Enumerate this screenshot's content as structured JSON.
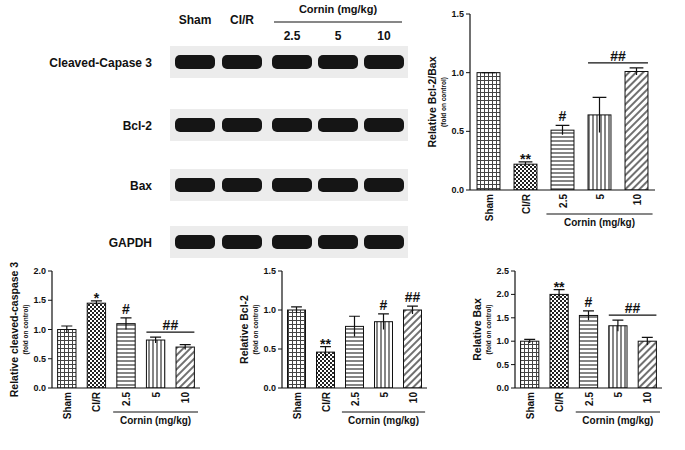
{
  "blot": {
    "lanes": [
      "Sham",
      "CI/R",
      "2.5",
      "5",
      "10"
    ],
    "dose_group": "Cornin (mg/kg)",
    "rows": [
      "Cleaved-Capase 3",
      "Bcl-2",
      "Bax",
      "GAPDH"
    ]
  },
  "chart_data": [
    {
      "type": "bar",
      "ylabel": "Relative Bcl-2/Bax",
      "ylabel_note": "(fold on control)",
      "categories": [
        "Sham",
        "CI/R",
        "2.5",
        "5",
        "10"
      ],
      "values": [
        1.0,
        0.22,
        0.51,
        0.64,
        1.01
      ],
      "errors": [
        0.0,
        0.02,
        0.04,
        0.15,
        0.03
      ],
      "ylim": [
        0,
        1.5
      ],
      "yticks": [
        {
          "value": 0,
          "label": "0.0"
        },
        0.5,
        {
          "value": 1,
          "label": "1.0"
        },
        1.5
      ],
      "x_group": {
        "label": "Cornin (mg/kg)",
        "categories": [
          "2.5",
          "5",
          "10"
        ]
      },
      "annotations": [
        {
          "text": "**",
          "categories": [
            "CI/R"
          ]
        },
        {
          "text": "#",
          "categories": [
            "2.5"
          ]
        },
        {
          "text": "##",
          "categories": [
            "5",
            "10"
          ]
        }
      ]
    },
    {
      "type": "bar",
      "ylabel": "Relative cleaved-caspase 3",
      "ylabel_note": "(fold on control)",
      "categories": [
        "Sham",
        "CI/R",
        "2.5",
        "5",
        "10"
      ],
      "values": [
        1.0,
        1.45,
        1.1,
        0.82,
        0.7
      ],
      "errors": [
        0.06,
        0.04,
        0.1,
        0.05,
        0.04
      ],
      "ylim": [
        0,
        2
      ],
      "yticks": [
        {
          "value": 0,
          "label": "0.0"
        },
        0.5,
        {
          "value": 1,
          "label": "1.0"
        },
        1.5,
        {
          "value": 2,
          "label": "2.0"
        }
      ],
      "x_group": {
        "label": "Cornin (mg/kg)",
        "categories": [
          "2.5",
          "5",
          "10"
        ]
      },
      "annotations": [
        {
          "text": "*",
          "categories": [
            "CI/R"
          ]
        },
        {
          "text": "#",
          "categories": [
            "2.5"
          ]
        },
        {
          "text": "##",
          "categories": [
            "5",
            "10"
          ]
        }
      ]
    },
    {
      "type": "bar",
      "ylabel": "Relative Bcl-2",
      "ylabel_note": "(fold on control)",
      "categories": [
        "Sham",
        "CI/R",
        "2.5",
        "5",
        "10"
      ],
      "values": [
        1.0,
        0.46,
        0.79,
        0.85,
        1.0
      ],
      "errors": [
        0.04,
        0.07,
        0.13,
        0.1,
        0.05
      ],
      "ylim": [
        0,
        1.5
      ],
      "yticks": [
        {
          "value": 0,
          "label": "0.0"
        },
        0.5,
        {
          "value": 1,
          "label": "1.0"
        },
        1.5
      ],
      "x_group": {
        "label": "Cornin (mg/kg)",
        "categories": [
          "2.5",
          "5",
          "10"
        ]
      },
      "annotations": [
        {
          "text": "**",
          "categories": [
            "CI/R"
          ]
        },
        {
          "text": "#",
          "categories": [
            "5"
          ]
        },
        {
          "text": "##",
          "categories": [
            "10"
          ]
        }
      ]
    },
    {
      "type": "bar",
      "ylabel": "Relative Bax",
      "ylabel_note": "(fold on control)",
      "categories": [
        "Sham",
        "CI/R",
        "2.5",
        "5",
        "10"
      ],
      "values": [
        1.0,
        2.0,
        1.55,
        1.33,
        1.0
      ],
      "errors": [
        0.04,
        0.1,
        0.1,
        0.12,
        0.08
      ],
      "ylim": [
        0,
        2.5
      ],
      "yticks": [
        {
          "value": 0,
          "label": "0.0"
        },
        0.5,
        {
          "value": 1,
          "label": "1.0"
        },
        1.5,
        {
          "value": 2,
          "label": "2.0"
        },
        2.5
      ],
      "x_group": {
        "label": "Cornin (mg/kg)",
        "categories": [
          "2.5",
          "5",
          "10"
        ]
      },
      "annotations": [
        {
          "text": "**",
          "categories": [
            "CI/R"
          ]
        },
        {
          "text": "#",
          "categories": [
            "2.5"
          ]
        },
        {
          "text": "##",
          "categories": [
            "5",
            "10"
          ]
        }
      ]
    }
  ]
}
